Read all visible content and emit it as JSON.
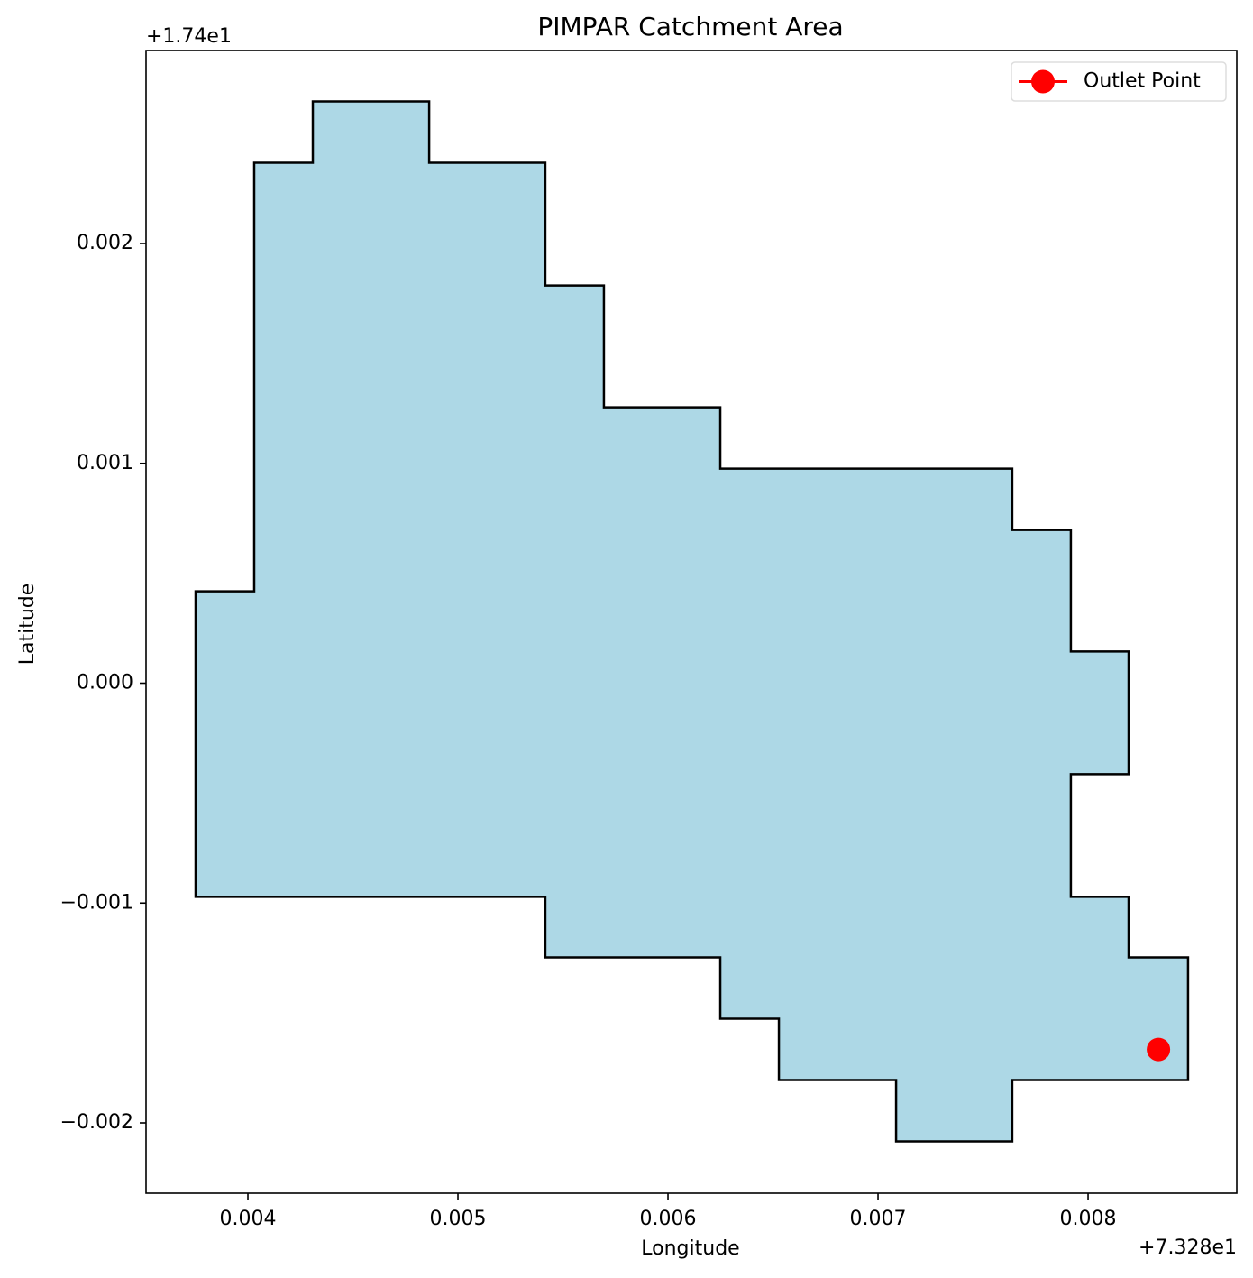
{
  "chart_data": {
    "type": "polygon",
    "title": "PIMPAR Catchment Area",
    "x_label": "Longitude",
    "y_label": "Latitude",
    "x_offset": "+7.328e1",
    "y_offset": "+1.74e1",
    "xlim": [
      0.003515,
      0.008708
    ],
    "ylim": [
      -0.00232,
      0.002878
    ],
    "xticks": [
      0.004,
      0.005,
      0.006,
      0.007,
      0.008
    ],
    "yticks": [
      {
        "value": -0.002,
        "label": "−0.002"
      },
      {
        "value": -0.001,
        "label": "−0.001"
      },
      {
        "value": 0,
        "label": "0.000"
      },
      0.001,
      0.002
    ],
    "polygon": {
      "color": "#add8e6",
      "edgecolor": "#000000",
      "x": [
        0.003751,
        0.00403,
        0.00403,
        0.004309,
        0.004309,
        0.004863,
        0.004863,
        0.005416,
        0.005416,
        0.005695,
        0.005695,
        0.006249,
        0.006249,
        0.007639,
        0.007639,
        0.007918,
        0.007918,
        0.008193,
        0.008193,
        0.007918,
        0.007918,
        0.008193,
        0.008193,
        0.008476,
        0.008476,
        0.007639,
        0.007639,
        0.007086,
        0.007086,
        0.006528,
        0.006528,
        0.006249,
        0.006249,
        0.005416,
        0.005416,
        0.003751
      ],
      "y": [
        0.000418,
        0.000418,
        0.002367,
        0.002367,
        0.002646,
        0.002646,
        0.002367,
        0.002367,
        0.001809,
        0.001809,
        0.001255,
        0.001255,
        0.000976,
        0.000976,
        0.000697,
        0.000697,
        0.000144,
        0.000144,
        -0.000414,
        -0.000414,
        -0.000972,
        -0.000972,
        -0.001247,
        -0.001247,
        -0.001805,
        -0.001805,
        -0.002084,
        -0.002084,
        -0.001805,
        -0.001805,
        -0.001526,
        -0.001526,
        -0.001247,
        -0.001247,
        -0.000972,
        -0.000972
      ]
    },
    "series": [
      {
        "name": "Outlet Point",
        "color": "#ff0000",
        "x": [
          0.008335
        ],
        "y": [
          -0.001666
        ]
      }
    ],
    "legend": "upper right"
  }
}
